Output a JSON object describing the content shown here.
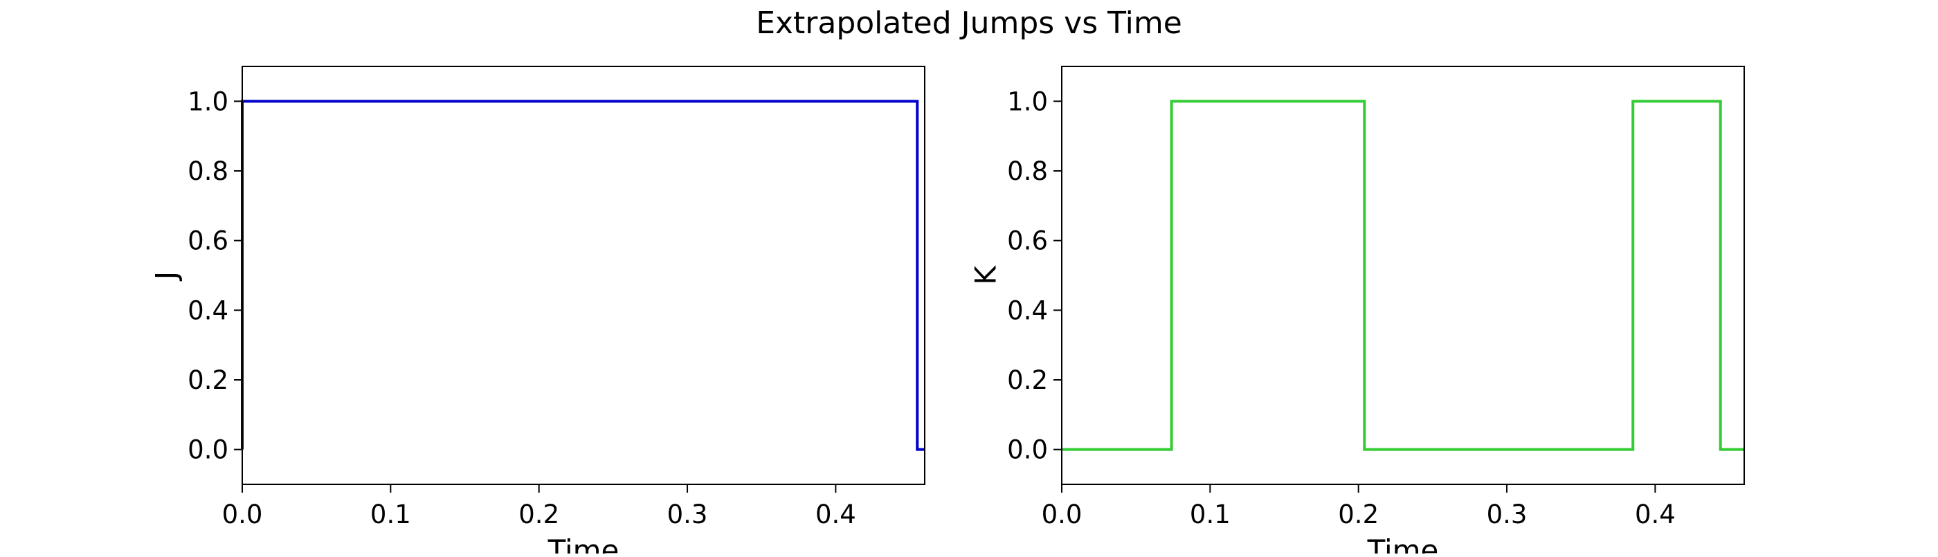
{
  "figure": {
    "title": "Extrapolated Jumps vs Time"
  },
  "chart_data": [
    {
      "type": "line",
      "step": "post",
      "title": "",
      "xlabel": "Time",
      "ylabel": "J",
      "xlim": [
        0.0,
        0.46
      ],
      "ylim": [
        -0.1,
        1.1
      ],
      "xticks": [
        "0.0",
        "0.1",
        "0.2",
        "0.3",
        "0.4"
      ],
      "yticks": [
        "0.0",
        "0.2",
        "0.4",
        "0.6",
        "0.8",
        "1.0"
      ],
      "grid": false,
      "series": [
        {
          "color": "#0000cc",
          "x": [
            0.0,
            0.0,
            0.455,
            0.455,
            0.46
          ],
          "y": [
            0,
            1,
            1,
            0,
            0
          ]
        }
      ]
    },
    {
      "type": "line",
      "step": "post",
      "title": "",
      "xlabel": "Time",
      "ylabel": "K",
      "xlim": [
        0.0,
        0.46
      ],
      "ylim": [
        -0.1,
        1.1
      ],
      "xticks": [
        "0.0",
        "0.1",
        "0.2",
        "0.3",
        "0.4"
      ],
      "yticks": [
        "0.0",
        "0.2",
        "0.4",
        "0.6",
        "0.8",
        "1.0"
      ],
      "grid": false,
      "series": [
        {
          "color": "#33cc33",
          "x": [
            0.0,
            0.074,
            0.074,
            0.204,
            0.204,
            0.385,
            0.385,
            0.444,
            0.444,
            0.46
          ],
          "y": [
            0,
            0,
            1,
            1,
            0,
            0,
            1,
            1,
            0,
            0
          ]
        }
      ]
    }
  ]
}
